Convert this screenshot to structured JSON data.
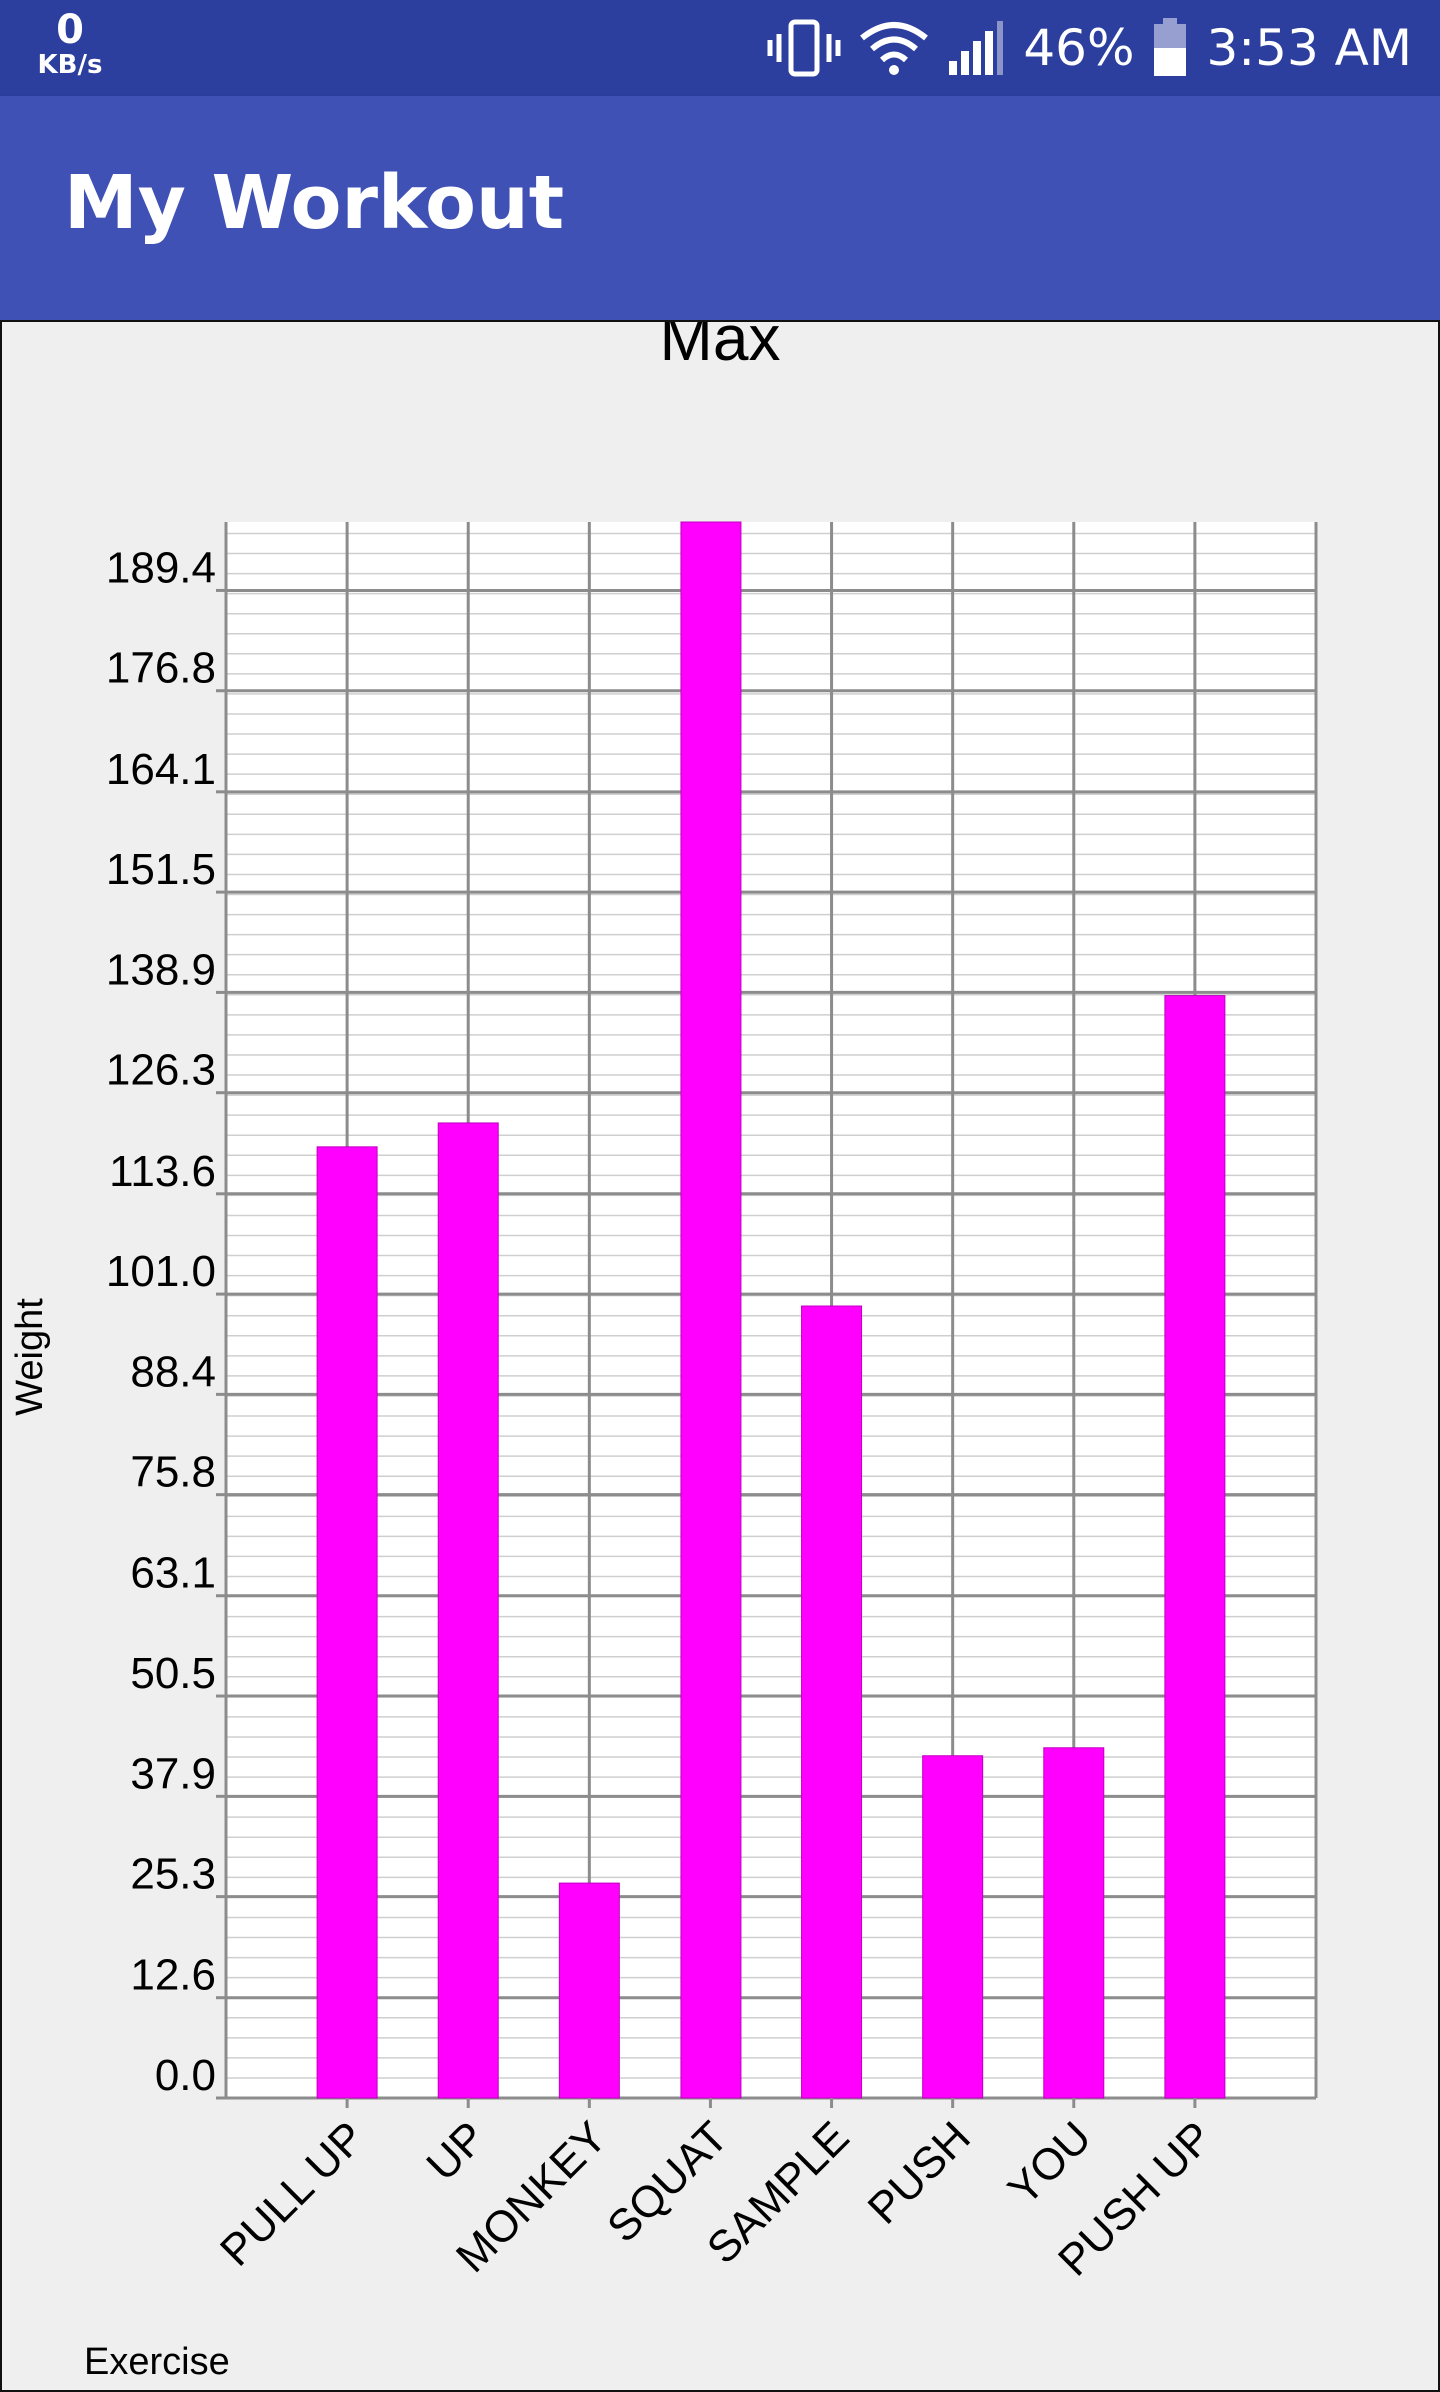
{
  "status_bar": {
    "speed_value": "0",
    "speed_unit": "KB/s",
    "battery_percent": "46%",
    "time": "3:53 AM",
    "icons": [
      "vibrate-icon",
      "wifi-icon",
      "signal-icon",
      "battery-icon"
    ]
  },
  "app_bar": {
    "title": "My Workout"
  },
  "colors": {
    "status_bar": "#2c3e9e",
    "app_bar": "#3f51b5",
    "bar_fill": "#ff00ff",
    "grid_major": "#8c8c8c",
    "grid_minor": "#cfcfcf",
    "plot_bg": "#ffffff",
    "page_bg": "#efefef"
  },
  "chart_data": {
    "type": "bar",
    "title": "Max",
    "xlabel": "Exercise",
    "ylabel": "Weight",
    "categories": [
      "PULL UP",
      "UP",
      "MONKEY",
      "SQUAT",
      "SAMPLE",
      "PUSH",
      "YOU",
      "PUSH UP"
    ],
    "values": [
      119.5,
      122.5,
      27,
      198,
      99.5,
      43,
      44,
      138.5
    ],
    "yticks": [
      "0.0",
      "12.6",
      "25.3",
      "37.9",
      "50.5",
      "63.1",
      "75.8",
      "88.4",
      "101.0",
      "113.6",
      "126.3",
      "138.9",
      "151.5",
      "164.1",
      "176.8",
      "189.4"
    ],
    "ylim": [
      0,
      198
    ],
    "grid": true,
    "legend": "none"
  }
}
